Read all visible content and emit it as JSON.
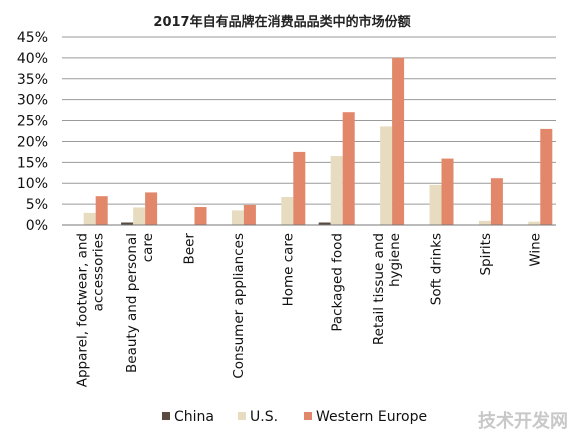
{
  "chart_data": {
    "type": "bar",
    "title": "2017年自有品牌在消费品品类中的市场份额",
    "categories": [
      [
        "Apparel, footwear, and",
        "accessories"
      ],
      [
        "Beauty and personal",
        "care"
      ],
      [
        "Beer"
      ],
      [
        "Consumer appliances"
      ],
      [
        "Home care"
      ],
      [
        "Packaged food"
      ],
      [
        "Retail tissue and",
        "hygiene"
      ],
      [
        "Soft drinks"
      ],
      [
        "Spirits"
      ],
      [
        "Wine"
      ]
    ],
    "series": [
      {
        "name": "China",
        "color": "#5a4a40",
        "values": [
          0.1,
          0.6,
          0.0,
          0.0,
          0.1,
          0.6,
          0.1,
          0.0,
          0.0,
          0.0
        ]
      },
      {
        "name": "U.S.",
        "color": "#e7dcc0",
        "values": [
          2.9,
          4.2,
          0.0,
          3.5,
          6.7,
          16.5,
          23.6,
          9.6,
          1.0,
          0.8
        ]
      },
      {
        "name": "Western Europe",
        "color": "#e2876a",
        "values": [
          6.9,
          7.8,
          4.3,
          4.8,
          17.5,
          27.0,
          40.0,
          15.9,
          11.2,
          23.0
        ]
      }
    ],
    "yticks": [
      "0%",
      "5%",
      "10%",
      "15%",
      "20%",
      "25%",
      "30%",
      "35%",
      "40%",
      "45%"
    ],
    "ylim": [
      0,
      45
    ],
    "grid": true,
    "legend_position": "bottom-center"
  },
  "watermark": "技术开发网"
}
